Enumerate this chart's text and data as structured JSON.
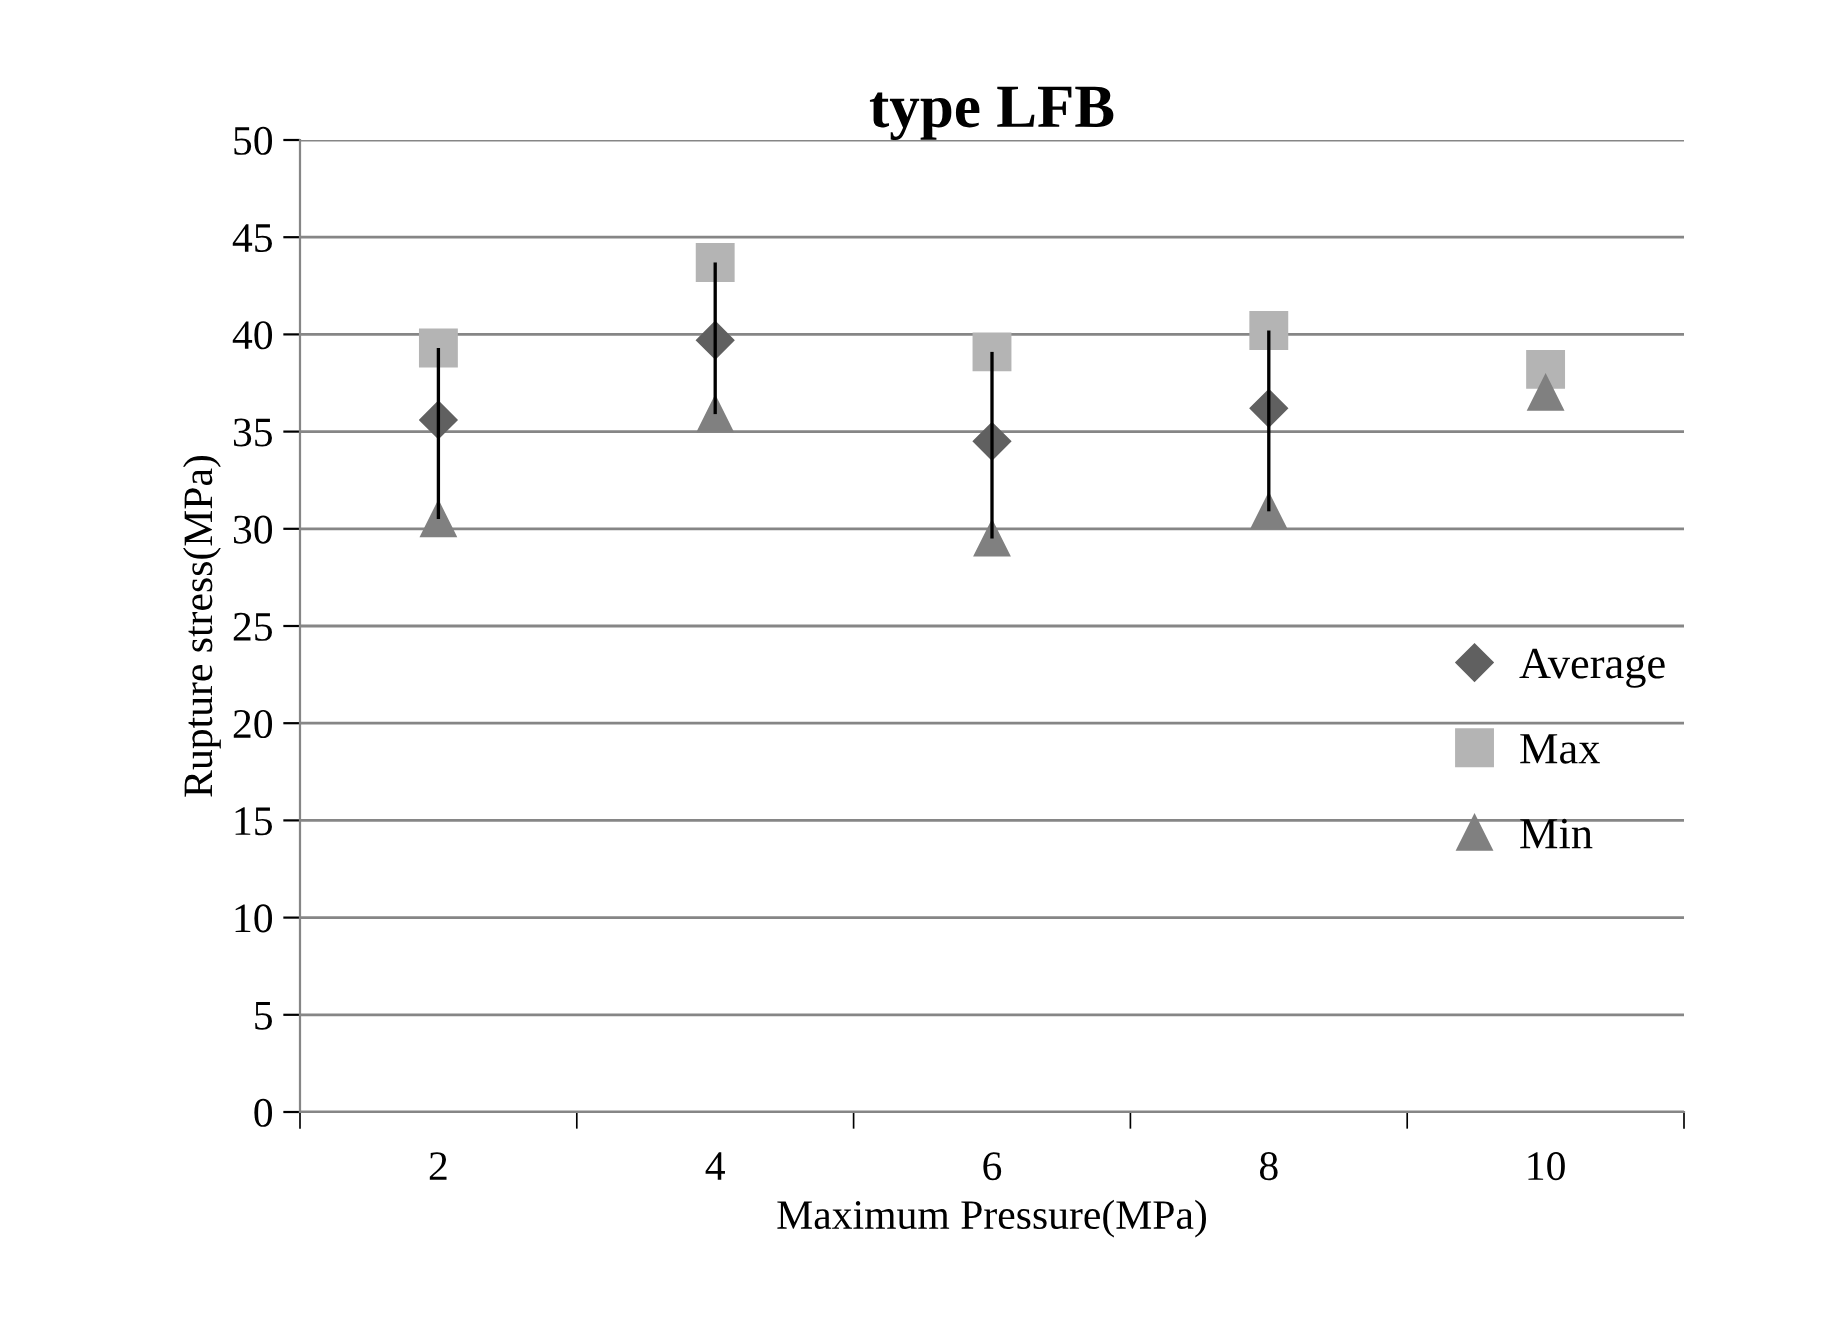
{
  "chart_data": {
    "type": "scatter",
    "title": "type LFB",
    "xlabel": "Maximum Pressure(MPa)",
    "ylabel": "Rupture stress(MPa)",
    "categories": [
      "2",
      "4",
      "6",
      "8",
      "10"
    ],
    "series": [
      {
        "type": "bar",
        "color": "#000000",
        "base": [
          30.5,
          35.9,
          29.5,
          30.9,
          null
        ],
        "values": [
          8.8,
          7.8,
          9.6,
          9.3,
          null
        ]
      },
      {
        "name": "Average",
        "color": "#606060",
        "marker": "diamond",
        "values": [
          35.6,
          39.7,
          34.5,
          36.2,
          null
        ]
      },
      {
        "name": "Max",
        "color": "#b4b4b4",
        "marker": "square",
        "values": [
          39.3,
          43.7,
          39.1,
          40.2,
          38.2
        ]
      },
      {
        "name": "Min",
        "color": "#808080",
        "marker": "triangle",
        "values": [
          30.5,
          35.9,
          29.5,
          30.9,
          37.0
        ]
      }
    ],
    "ylim": [
      0,
      50
    ],
    "yticks": [
      0,
      5,
      10,
      15,
      20,
      25,
      30,
      35,
      40,
      45,
      50
    ],
    "grid": "y",
    "legend": "right"
  }
}
